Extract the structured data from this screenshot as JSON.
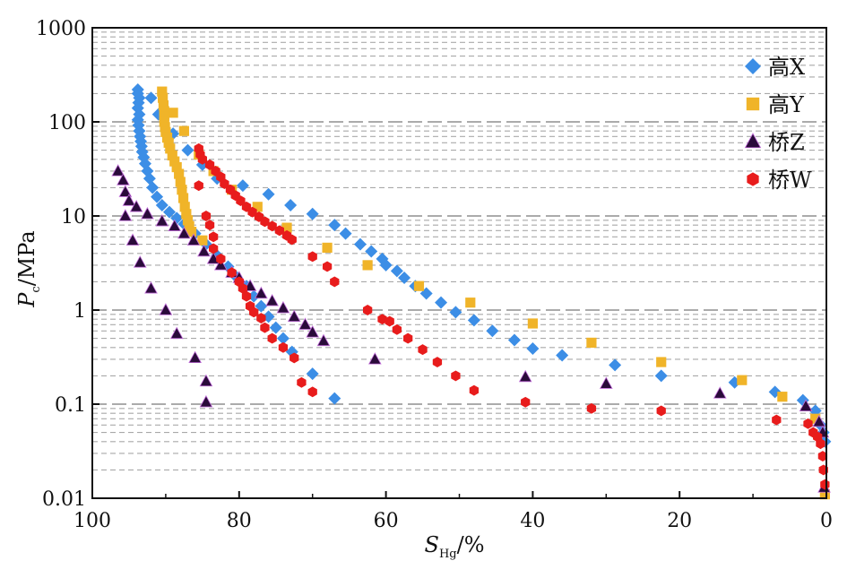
{
  "chart_data": {
    "type": "scatter",
    "title": "",
    "xlabel": {
      "main": "S",
      "sub": "Hg",
      "unit": "/%"
    },
    "ylabel": {
      "main": "P",
      "sub": "c",
      "unit": "/MPa"
    },
    "x_reversed": true,
    "xlim": [
      100,
      0
    ],
    "ylim": [
      0.01,
      1000
    ],
    "yscale": "log",
    "x_ticks": [
      "100",
      "80",
      "60",
      "40",
      "20",
      "0"
    ],
    "y_ticks": [
      "0.01",
      "0.1",
      "1",
      "10",
      "100",
      "1000"
    ],
    "grid": "horizontal dashed at decade minor values",
    "legend_position": "top-right",
    "series": [
      {
        "name": "高X",
        "marker": "diamond",
        "color": "#3c8ee6",
        "points": [
          [
            93.8,
            220
          ],
          [
            93.8,
            200
          ],
          [
            93.6,
            180
          ],
          [
            93.7,
            160
          ],
          [
            93.8,
            140
          ],
          [
            93.6,
            120
          ],
          [
            93.8,
            105
          ],
          [
            93.7,
            92
          ],
          [
            93.6,
            80
          ],
          [
            93.5,
            70
          ],
          [
            93.4,
            62
          ],
          [
            93.3,
            55
          ],
          [
            93.2,
            48
          ],
          [
            93.0,
            42
          ],
          [
            92.8,
            36
          ],
          [
            92.5,
            30
          ],
          [
            92.2,
            25
          ],
          [
            91.8,
            20
          ],
          [
            91.2,
            16
          ],
          [
            90.5,
            13
          ],
          [
            89.5,
            11
          ],
          [
            88.5,
            9.5
          ],
          [
            87.5,
            8.2
          ],
          [
            86.0,
            6.5
          ],
          [
            84.5,
            5.0
          ],
          [
            83.0,
            3.8
          ],
          [
            81.5,
            2.9
          ],
          [
            80.5,
            2.3
          ],
          [
            79.0,
            1.8
          ],
          [
            78.0,
            1.4
          ],
          [
            77.0,
            1.1
          ],
          [
            76.0,
            0.85
          ],
          [
            75.0,
            0.65
          ],
          [
            74.0,
            0.5
          ],
          [
            72.8,
            0.36
          ],
          [
            70.0,
            0.21
          ],
          [
            67.0,
            0.115
          ],
          [
            92.0,
            180
          ],
          [
            91.0,
            120
          ],
          [
            89.0,
            75
          ],
          [
            87.0,
            50
          ],
          [
            85.0,
            35
          ],
          [
            83.0,
            25
          ],
          [
            79.5,
            21
          ],
          [
            76.0,
            17
          ],
          [
            73.0,
            13
          ],
          [
            70.0,
            10.5
          ],
          [
            67.0,
            8.0
          ],
          [
            65.5,
            6.5
          ],
          [
            63.5,
            5.0
          ],
          [
            62.0,
            4.2
          ],
          [
            60.5,
            3.5
          ],
          [
            60.0,
            3.0
          ],
          [
            58.5,
            2.6
          ],
          [
            57.5,
            2.2
          ],
          [
            56.0,
            1.8
          ],
          [
            54.5,
            1.5
          ],
          [
            52.5,
            1.2
          ],
          [
            50.5,
            0.95
          ],
          [
            48.0,
            0.78
          ],
          [
            45.5,
            0.6
          ],
          [
            42.5,
            0.48
          ],
          [
            40.0,
            0.39
          ],
          [
            36.0,
            0.33
          ],
          [
            28.8,
            0.26
          ],
          [
            22.5,
            0.2
          ],
          [
            12.5,
            0.17
          ],
          [
            7.0,
            0.135
          ],
          [
            3.2,
            0.11
          ],
          [
            1.5,
            0.085
          ],
          [
            0.8,
            0.06
          ],
          [
            0.4,
            0.05
          ],
          [
            0.2,
            0.04
          ]
        ]
      },
      {
        "name": "高Y",
        "marker": "square",
        "color": "#f0b429",
        "points": [
          [
            90.5,
            210
          ],
          [
            90.4,
            180
          ],
          [
            90.3,
            150
          ],
          [
            90.2,
            130
          ],
          [
            90.2,
            115
          ],
          [
            90.2,
            100
          ],
          [
            90.1,
            88
          ],
          [
            90.0,
            78
          ],
          [
            89.8,
            68
          ],
          [
            89.6,
            60
          ],
          [
            89.4,
            52
          ],
          [
            89.1,
            44
          ],
          [
            88.8,
            38
          ],
          [
            88.5,
            33
          ],
          [
            88.2,
            28
          ],
          [
            88.0,
            23
          ],
          [
            87.8,
            19
          ],
          [
            87.6,
            15.5
          ],
          [
            87.4,
            12.5
          ],
          [
            87.2,
            10.5
          ],
          [
            87.0,
            9.0
          ],
          [
            86.8,
            7.8
          ],
          [
            86.5,
            6.8
          ],
          [
            85.0,
            5.5
          ],
          [
            89.0,
            125
          ],
          [
            87.5,
            80
          ],
          [
            85.5,
            45
          ],
          [
            83.5,
            30
          ],
          [
            81.0,
            19
          ],
          [
            77.5,
            12.5
          ],
          [
            73.5,
            7.5
          ],
          [
            68.0,
            4.6
          ],
          [
            62.5,
            3.0
          ],
          [
            55.5,
            1.8
          ],
          [
            48.5,
            1.2
          ],
          [
            40.0,
            0.72
          ],
          [
            32.0,
            0.45
          ],
          [
            22.5,
            0.28
          ],
          [
            11.5,
            0.18
          ],
          [
            6.0,
            0.12
          ],
          [
            1.5,
            0.07
          ],
          [
            0.2,
            0.011
          ]
        ]
      },
      {
        "name": "桥Z",
        "marker": "triangle",
        "color": "#2a0b3a",
        "points": [
          [
            96.5,
            30
          ],
          [
            95.8,
            24
          ],
          [
            95.5,
            18
          ],
          [
            95.0,
            14.5
          ],
          [
            94.0,
            12.5
          ],
          [
            92.5,
            10.5
          ],
          [
            90.5,
            8.8
          ],
          [
            88.8,
            7.8
          ],
          [
            87.5,
            6.5
          ],
          [
            86.2,
            5.5
          ],
          [
            84.8,
            4.2
          ],
          [
            83.5,
            3.5
          ],
          [
            82.5,
            3.0
          ],
          [
            81.0,
            2.5
          ],
          [
            80.0,
            2.2
          ],
          [
            78.5,
            1.8
          ],
          [
            77.0,
            1.5
          ],
          [
            75.5,
            1.25
          ],
          [
            74.0,
            1.05
          ],
          [
            72.5,
            0.85
          ],
          [
            71.0,
            0.7
          ],
          [
            70.0,
            0.58
          ],
          [
            68.5,
            0.47
          ],
          [
            95.5,
            10
          ],
          [
            94.5,
            5.5
          ],
          [
            93.5,
            3.2
          ],
          [
            92.0,
            1.7
          ],
          [
            90.0,
            1.0
          ],
          [
            88.5,
            0.56
          ],
          [
            86.0,
            0.31
          ],
          [
            84.5,
            0.175
          ],
          [
            84.5,
            0.105
          ],
          [
            61.5,
            0.3
          ],
          [
            41.0,
            0.195
          ],
          [
            30.0,
            0.165
          ],
          [
            14.5,
            0.13
          ],
          [
            2.8,
            0.095
          ],
          [
            1.0,
            0.065
          ],
          [
            0.5,
            0.05
          ],
          [
            0.3,
            0.013
          ]
        ]
      },
      {
        "name": "桥W",
        "marker": "hexagon",
        "color": "#e81c1c",
        "points": [
          [
            85.5,
            52
          ],
          [
            85.3,
            45
          ],
          [
            85.0,
            40
          ],
          [
            84.0,
            35
          ],
          [
            83.2,
            30
          ],
          [
            82.5,
            26
          ],
          [
            82.0,
            22
          ],
          [
            81.2,
            19
          ],
          [
            80.5,
            16.5
          ],
          [
            79.8,
            14.5
          ],
          [
            79.0,
            12.5
          ],
          [
            78.2,
            11.0
          ],
          [
            77.3,
            9.8
          ],
          [
            76.5,
            8.7
          ],
          [
            75.5,
            7.8
          ],
          [
            74.5,
            7.0
          ],
          [
            73.5,
            6.2
          ],
          [
            72.8,
            5.6
          ],
          [
            84.5,
            10
          ],
          [
            84.0,
            8.0
          ],
          [
            83.5,
            6.0
          ],
          [
            83.5,
            4.5
          ],
          [
            82.5,
            3.5
          ],
          [
            81.0,
            2.5
          ],
          [
            80.0,
            2.0
          ],
          [
            79.5,
            1.7
          ],
          [
            79.0,
            1.4
          ],
          [
            78.5,
            1.1
          ],
          [
            78.0,
            0.95
          ],
          [
            77.0,
            0.82
          ],
          [
            76.5,
            0.65
          ],
          [
            75.5,
            0.5
          ],
          [
            74.0,
            0.4
          ],
          [
            72.5,
            0.31
          ],
          [
            71.5,
            0.17
          ],
          [
            70.0,
            0.135
          ],
          [
            85.5,
            21
          ],
          [
            70.0,
            3.7
          ],
          [
            68.0,
            2.9
          ],
          [
            67.0,
            2.0
          ],
          [
            62.5,
            1.0
          ],
          [
            60.5,
            0.8
          ],
          [
            59.5,
            0.76
          ],
          [
            58.5,
            0.62
          ],
          [
            57.0,
            0.5
          ],
          [
            55.0,
            0.38
          ],
          [
            53.0,
            0.28
          ],
          [
            50.5,
            0.2
          ],
          [
            48.0,
            0.14
          ],
          [
            41.0,
            0.105
          ],
          [
            32.0,
            0.09
          ],
          [
            22.5,
            0.085
          ],
          [
            6.8,
            0.068
          ],
          [
            2.5,
            0.062
          ],
          [
            1.8,
            0.05
          ],
          [
            1.2,
            0.045
          ],
          [
            0.8,
            0.038
          ],
          [
            0.5,
            0.028
          ],
          [
            0.4,
            0.02
          ],
          [
            0.2,
            0.014
          ]
        ]
      }
    ]
  }
}
